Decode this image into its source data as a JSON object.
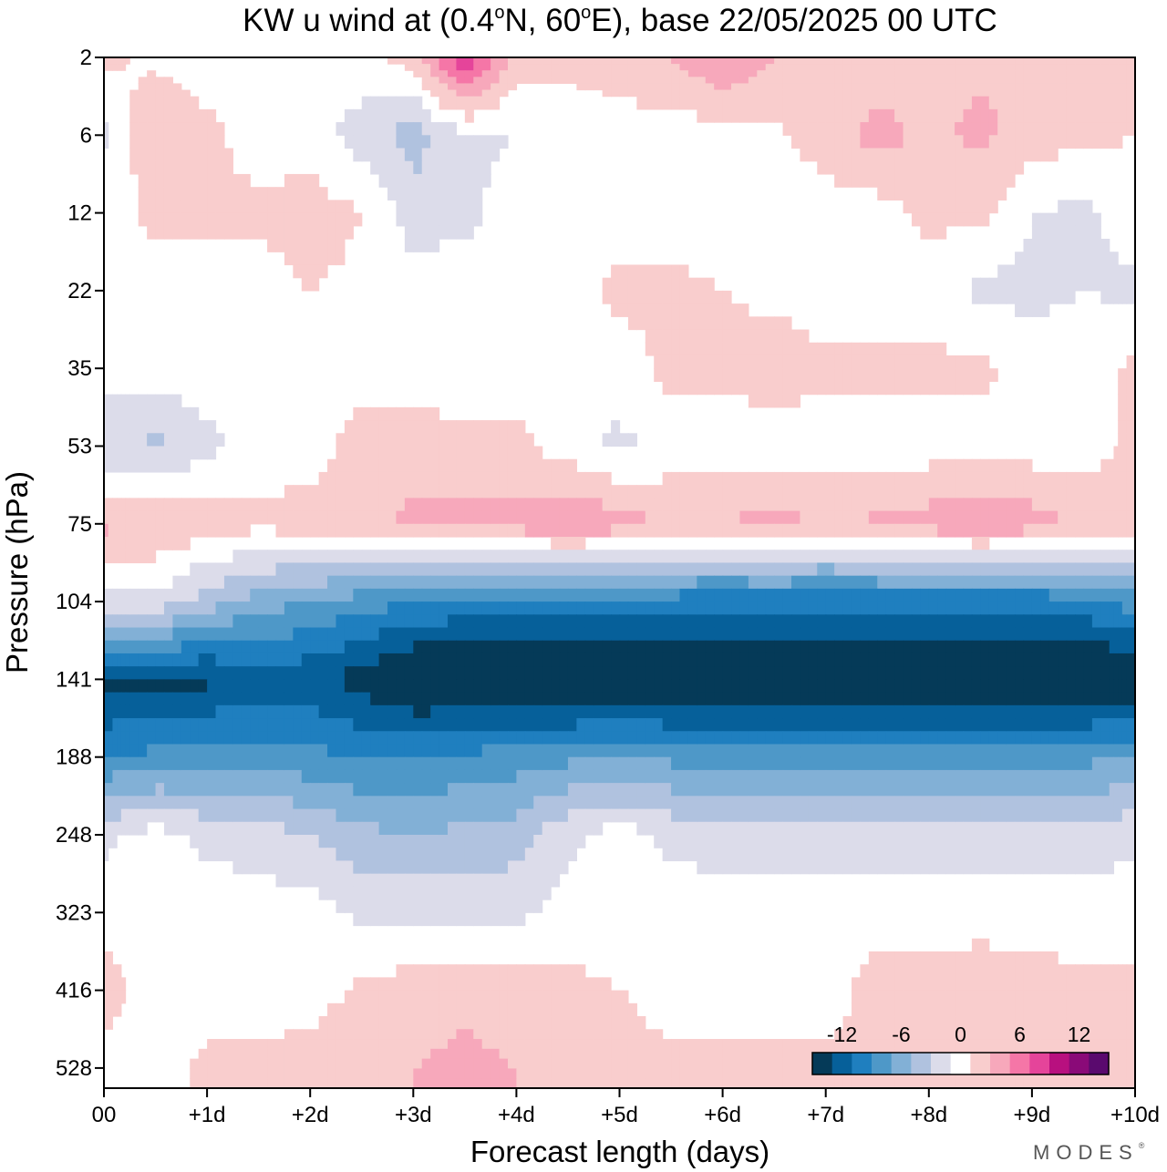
{
  "chart_data": {
    "type": "heatmap",
    "title_parts": {
      "prefix": "KW u wind at (0.4",
      "deg1": "o",
      "mid": "N, 60",
      "deg2": "o",
      "suffix": "E),  base 22/05/2025  00 UTC"
    },
    "xlabel": "Forecast length (days)",
    "ylabel": "Pressure (hPa)",
    "x_ticks": [
      "00",
      "+1d",
      "+2d",
      "+3d",
      "+4d",
      "+5d",
      "+6d",
      "+7d",
      "+8d",
      "+9d",
      "+10d"
    ],
    "xlim": [
      0,
      10
    ],
    "y_ticks": [
      2,
      6,
      12,
      22,
      35,
      53,
      75,
      104,
      141,
      188,
      248,
      323,
      416,
      528
    ],
    "y_scale": "inverted, nonuniform (tick labels equally spaced)",
    "grid": false,
    "colorbar": {
      "placement": "bottom-right, inside plot",
      "tick_labels": [
        "-12",
        "-6",
        "0",
        "6",
        "12"
      ],
      "tick_values": [
        -12,
        -6,
        0,
        6,
        12
      ],
      "levels": [
        -15,
        -13,
        -11,
        -9,
        -7,
        -5,
        -3,
        -1,
        1,
        3,
        5,
        7,
        9,
        11,
        13,
        15
      ],
      "colors": [
        "#053a58",
        "#06609a",
        "#1f7fbf",
        "#4e98c8",
        "#82b0d6",
        "#b0c2df",
        "#dcdcea",
        "#ffffff",
        "#f9cdcd",
        "#f7a8bb",
        "#f576a7",
        "#e5449a",
        "#b8107f",
        "#8a0a78",
        "#5a0a6e"
      ]
    },
    "x_days": [
      0,
      0.5,
      1,
      1.5,
      2,
      2.5,
      3,
      3.5,
      4,
      4.5,
      5,
      5.5,
      6,
      6.5,
      7,
      7.5,
      8,
      8.5,
      9,
      9.5,
      10
    ],
    "rows": [
      {
        "pressure": 2,
        "u": [
          1.5,
          0.5,
          0,
          0.5,
          0,
          0.5,
          2,
          9,
          2,
          1.5,
          2,
          3,
          5,
          3,
          1,
          1,
          1.5,
          2.5,
          3,
          2,
          1.5
        ]
      },
      {
        "pressure": 6,
        "u": [
          -1.5,
          3,
          1.5,
          0,
          0,
          -2,
          -4,
          -1.5,
          -1,
          0,
          0,
          0,
          0,
          0.5,
          2,
          4,
          2.5,
          3.5,
          2,
          1.5,
          1
        ]
      },
      {
        "pressure": 12,
        "u": [
          0,
          1.5,
          1.5,
          1.5,
          2,
          1,
          -2,
          -1.5,
          0,
          0,
          0,
          0,
          0,
          0,
          0,
          0,
          1.5,
          1.5,
          -1,
          -1.5,
          0
        ]
      },
      {
        "pressure": 22,
        "u": [
          0,
          0,
          0,
          0,
          1,
          0.5,
          0,
          0,
          0,
          0,
          1.5,
          1.5,
          1,
          0.5,
          0,
          0,
          0,
          -1.5,
          -1.5,
          -1,
          -1.5
        ]
      },
      {
        "pressure": 35,
        "u": [
          0,
          0,
          0,
          0,
          0,
          0,
          0,
          0,
          0,
          0,
          0,
          1.5,
          1.5,
          2,
          1.5,
          1.5,
          1.5,
          1.5,
          0,
          0,
          1.5
        ]
      },
      {
        "pressure": 53,
        "u": [
          -2.5,
          -3.5,
          -1.5,
          0,
          0,
          2,
          2,
          1.5,
          1.5,
          0,
          -1.5,
          0,
          0,
          0,
          0,
          0,
          0,
          0,
          0,
          0,
          1.5
        ]
      },
      {
        "pressure": 75,
        "u": [
          3.5,
          3,
          2,
          1.5,
          2,
          2.5,
          3.5,
          4,
          4,
          5,
          4,
          2.5,
          3,
          4,
          2.5,
          3.5,
          4,
          5,
          4,
          2.5,
          2
        ]
      },
      {
        "pressure": 104,
        "u": [
          -2,
          -1.5,
          -4,
          -6,
          -7,
          -8,
          -9,
          -9.5,
          -10,
          -10,
          -10,
          -10,
          -10.5,
          -10.5,
          -10.5,
          -10.5,
          -10.5,
          -10.5,
          -10.5,
          -9.5,
          -8
        ]
      },
      {
        "pressure": 141,
        "u": [
          -14,
          -13.5,
          -13.5,
          -12,
          -12.5,
          -14,
          -16,
          -16,
          -16,
          -16,
          -16,
          -16,
          -16,
          -16,
          -16,
          -16,
          -16,
          -16,
          -16,
          -16,
          -16
        ]
      },
      {
        "pressure": 188,
        "u": [
          -9,
          -8.5,
          -8,
          -8,
          -8.5,
          -9,
          -9,
          -8.5,
          -8,
          -7.5,
          -7,
          -7.5,
          -7.5,
          -7.5,
          -7.5,
          -7.5,
          -7.5,
          -7.5,
          -7.5,
          -7.5,
          -7
        ]
      },
      {
        "pressure": 248,
        "u": [
          -1.5,
          0,
          -1.5,
          -2,
          -3,
          -4.5,
          -5,
          -4.5,
          -4,
          -1.5,
          0,
          -1.5,
          -2,
          -2,
          -2,
          -2,
          -2,
          -2,
          -2,
          -2,
          -1.5
        ]
      },
      {
        "pressure": 323,
        "u": [
          0,
          0,
          0,
          0,
          0,
          -1.5,
          -1.5,
          -1.5,
          -1.5,
          0,
          0,
          0,
          0,
          0,
          0,
          0,
          0,
          0,
          0,
          0,
          0
        ]
      },
      {
        "pressure": 416,
        "u": [
          2,
          0,
          0,
          0,
          0,
          1.5,
          2,
          2.5,
          2,
          1.5,
          1,
          0,
          0,
          0,
          0,
          2,
          2,
          2.5,
          2,
          1.5,
          1.5
        ]
      },
      {
        "pressure": 528,
        "u": [
          0,
          0,
          1.5,
          1.5,
          2,
          2.5,
          3,
          3.5,
          3,
          2.5,
          2,
          1.5,
          1.5,
          1.5,
          1.5,
          1.5,
          2,
          2,
          1.5,
          1.5,
          1.5
        ]
      }
    ]
  },
  "brand": {
    "name": "MODES",
    "mark": "®"
  }
}
